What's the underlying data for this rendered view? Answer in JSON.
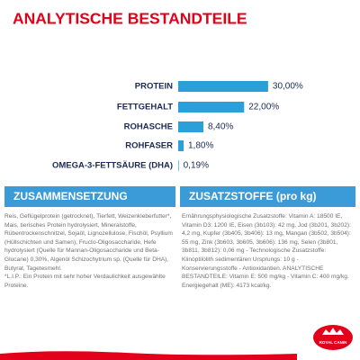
{
  "chart_data": {
    "type": "bar",
    "orientation": "horizontal",
    "title": "ANALYTISCHE BESTANDTEILE",
    "categories": [
      "PROTEIN",
      "FETTGEHALT",
      "ROHASCHE",
      "ROHFASER",
      "OMEGA-3-FETTSÄURE (DHA)"
    ],
    "values": [
      30,
      22,
      8.4,
      1.8,
      0.19
    ],
    "value_labels": [
      "30,00%",
      "22,00%",
      "8,40%",
      "1,80%",
      "0,19%"
    ],
    "color": "#2a9fd8",
    "grid": false
  },
  "sections": [
    {
      "heading": "ZUSAMMENSETZUNG",
      "paragraphs": [
        "Reis, Geflügelprotein (getrocknet), Tierfett, Weizenkleberfutter*, Mais, tierisches Protein hydrolysiert, Mineralstoffe, Rübentrockenschnitzel, Sojaöl, Lignozellulose, Fischöl, Psyllium (Hüllschichten und Samen), Fructo-Oligosaccharide, Hefe hydrolysiert (Quelle für Mannan-Oligosaccharide und Beta-Glucane) 0,30%, Algenöl Schizochytrium sp. (Quelle für DHA), Butyrat, Tagetesmehl.",
        "*L.I.P.: Ein Protein mit sehr hoher Verdaulichkeit ausgewählte Proteine."
      ]
    },
    {
      "heading": "ZUSATZSTOFFE (pro kg)",
      "paragraphs": [
        "Ernährungsphysiologische Zusatzstoffe: Vitamin A: 18500 IE, Vitamin D3: 1200 IE, Eisen (3b103): 42 mg, Jod (3b201, 3b202): 4,2 mg, Kupfer (3b405, 3b406): 13 mg, Mangan (3b502, 3b504): 55 mg, Zink (3b603, 3b605, 3b606): 136 mg, Selen (3b801, 3b811, 3b812): 0,06 mg - Technologische Zusatzstoffe: Klinoptilolith sedimentären Ursprungs: 10 g - Konservierungsstoffe - Antioxidantien. ANALYTISCHE BESTANDTEILE: Vitamin E: 500 mg/kg - Vitamin C: 400 mg/kg. Energiegehalt (ME): 4173 kcal/kg."
      ]
    }
  ],
  "logo": {
    "text": "ROYAL CANIN"
  }
}
